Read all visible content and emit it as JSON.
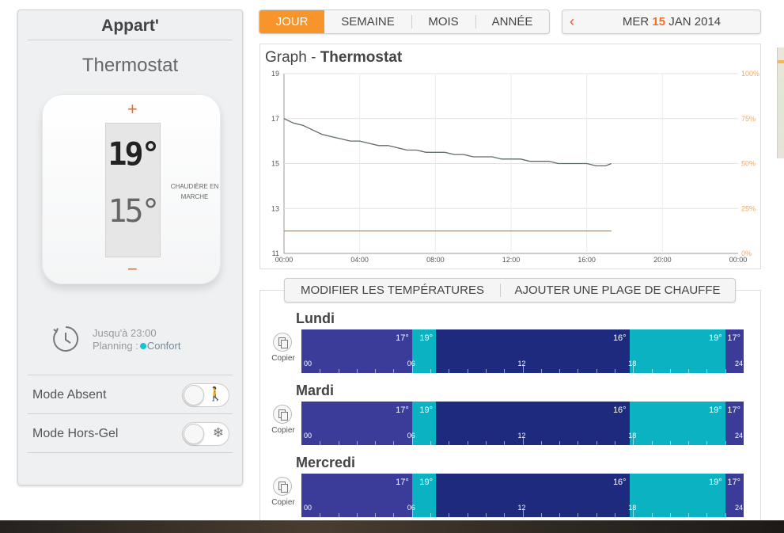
{
  "left": {
    "home_name": "Appart'",
    "device_title": "Thermostat",
    "thermostat": {
      "plus": "+",
      "minus": "−",
      "current_temp": "19°",
      "set_temp": "15°",
      "boiler_line1": "CHAUDIÈRE EN",
      "boiler_line2": "MARCHE"
    },
    "until": "Jusqu'à 23:00",
    "planning_label": "Planning :",
    "planning_value": "Confort",
    "modes": [
      {
        "label": "Mode Absent",
        "icon": "walking-person-icon",
        "glyph": "🚶"
      },
      {
        "label": "Mode Hors-Gel",
        "icon": "snowflake-icon",
        "glyph": "❄"
      }
    ]
  },
  "tabs": [
    {
      "label": "JOUR",
      "active": true
    },
    {
      "label": "SEMAINE",
      "active": false
    },
    {
      "label": "MOIS",
      "active": false
    },
    {
      "label": "ANNÉE",
      "active": false
    }
  ],
  "date": {
    "prev": "‹",
    "weekday": "MER",
    "day": "15",
    "month_year": "JAN 2014"
  },
  "graph": {
    "title_prefix": "Graph - ",
    "title_device": "Thermostat"
  },
  "chart_data": {
    "type": "line",
    "x_ticks": [
      "00:00",
      "04:00",
      "08:00",
      "12:00",
      "16:00",
      "20:00",
      "00:00"
    ],
    "y_ticks": [
      "11",
      "13",
      "15",
      "17",
      "19"
    ],
    "y2_ticks": [
      "0%",
      "25%",
      "50%",
      "75%",
      "100%"
    ],
    "xlim_hours": [
      0,
      24
    ],
    "ylim": [
      11,
      19
    ],
    "grid": true,
    "colors": {
      "temperature": "#5f6b6b",
      "setpoint": "#d4891a",
      "right_axis": "#f0a860"
    },
    "series": [
      {
        "key": "temperature",
        "hours": [
          0,
          0.5,
          1,
          1.5,
          2,
          2.5,
          3,
          3.5,
          4,
          4.5,
          5,
          5.5,
          6,
          6.5,
          7,
          7.5,
          8,
          8.5,
          9,
          9.5,
          10,
          10.5,
          11,
          11.5,
          12,
          12.5,
          13,
          13.5,
          14,
          14.5,
          15,
          15.5,
          16,
          16.5,
          17,
          17.3
        ],
        "values": [
          17.0,
          16.8,
          16.7,
          16.5,
          16.3,
          16.2,
          16.1,
          16.0,
          16.0,
          15.9,
          15.8,
          15.8,
          15.7,
          15.6,
          15.6,
          15.5,
          15.5,
          15.5,
          15.4,
          15.4,
          15.3,
          15.3,
          15.3,
          15.2,
          15.2,
          15.2,
          15.1,
          15.1,
          15.1,
          15.0,
          15.0,
          15.0,
          15.0,
          14.9,
          14.9,
          15.0
        ]
      },
      {
        "key": "setpoint",
        "hours": [
          0,
          17.3
        ],
        "values": [
          12.0,
          12.0
        ]
      }
    ]
  },
  "schedule": {
    "modify_label": "MODIFIER LES TEMPÉRATURES",
    "add_label": "AJOUTER UNE PLAGE DE CHAUFFE",
    "copy_label": "Copier",
    "hour_labels": [
      "00",
      "06",
      "12",
      "18",
      "24"
    ],
    "colors": {
      "eco": "#3b3c9a",
      "confort": "#0bb3c2",
      "nuit": "#1e2a7e"
    },
    "segments": [
      {
        "mode": "eco",
        "start": 0,
        "end": 6,
        "temp": "17°"
      },
      {
        "mode": "confort",
        "start": 6,
        "end": 7.3,
        "temp": "19°"
      },
      {
        "mode": "nuit",
        "start": 7.3,
        "end": 17.8,
        "temp": "16°"
      },
      {
        "mode": "confort",
        "start": 17.8,
        "end": 23,
        "temp": "19°"
      },
      {
        "mode": "eco",
        "start": 23,
        "end": 24,
        "temp": "17°"
      }
    ],
    "days": [
      "Lundi",
      "Mardi",
      "Mercredi"
    ]
  }
}
